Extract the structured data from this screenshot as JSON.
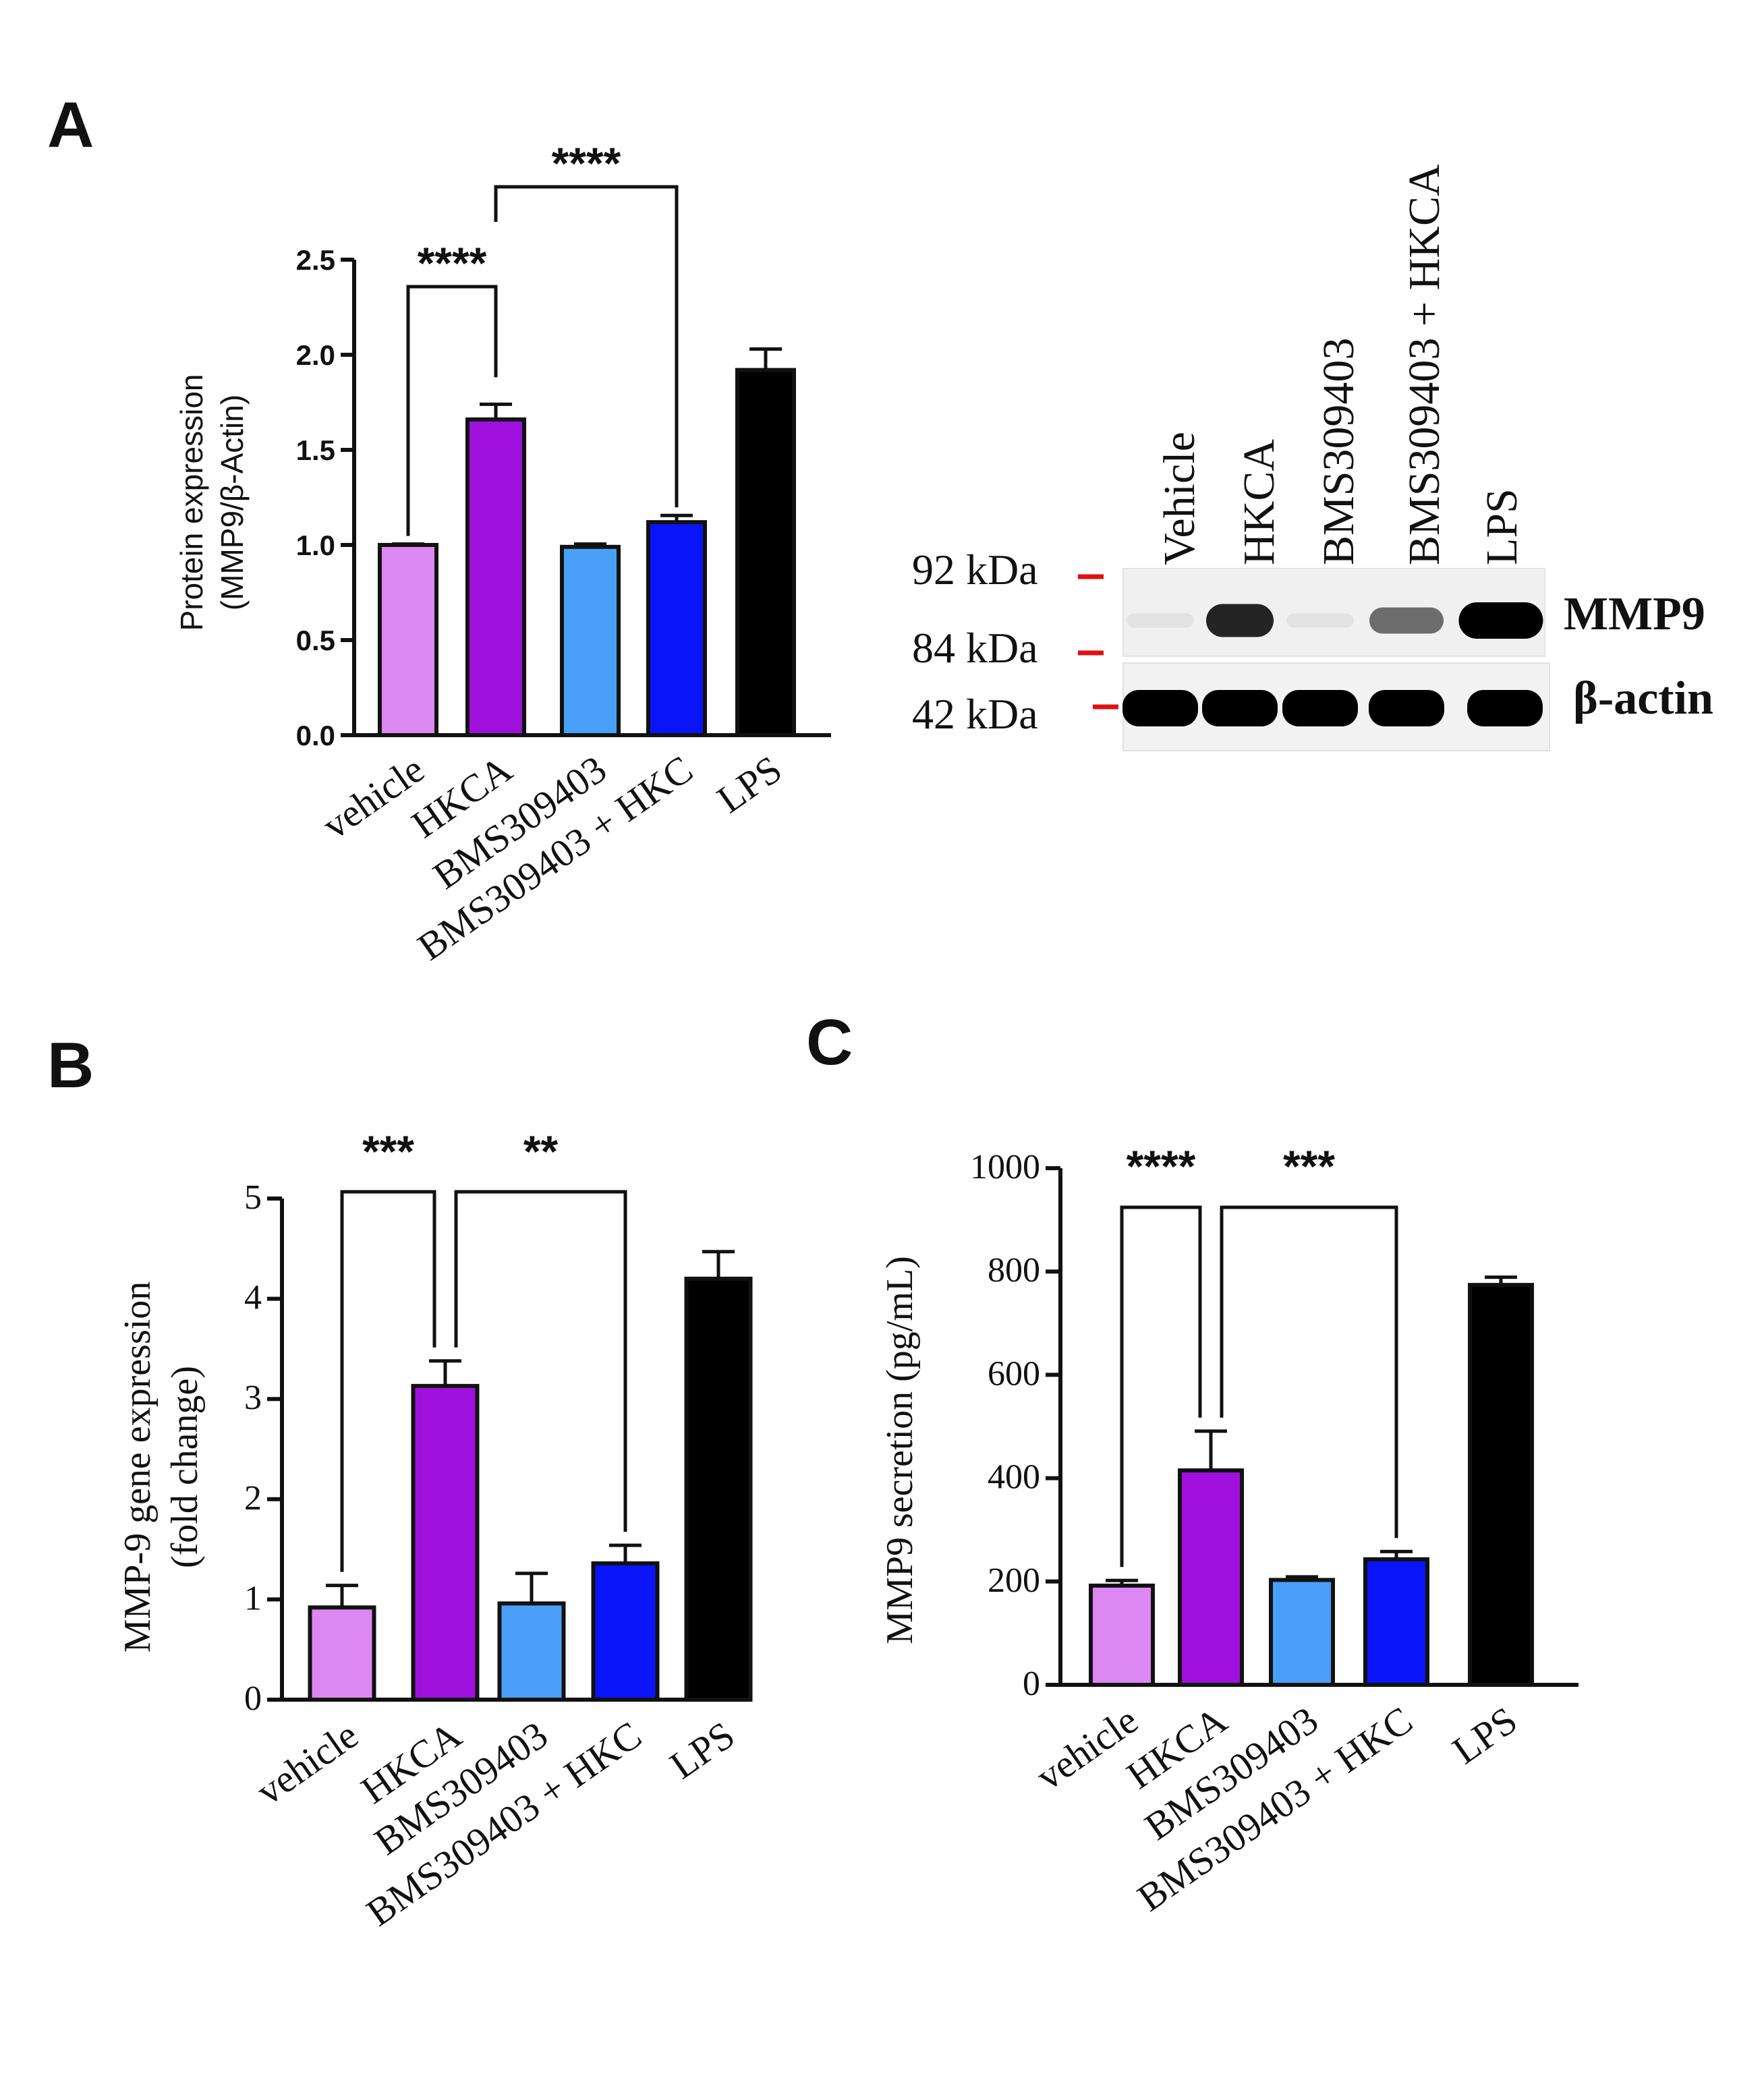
{
  "colors": {
    "vehicle": "#dd88f2",
    "HKCA": "#a010dc",
    "BMS309403": "#4aa0f8",
    "BMS309403 + HKC": "#0a14f8",
    "LPS": "#000000",
    "kda_marker": "#e01010"
  },
  "chart_data": [
    {
      "id": "A",
      "type": "bar",
      "panel_label": "A",
      "ylabel_lines": [
        "Protein expression",
        "(MMP9/β-Actin)"
      ],
      "categories": [
        "vehicle",
        "HKCA",
        "BMS309403",
        "BMS309403 + HKC",
        "LPS"
      ],
      "values": [
        1.0,
        1.66,
        0.99,
        1.12,
        1.92
      ],
      "errors": [
        0.005,
        0.08,
        0.015,
        0.035,
        0.11
      ],
      "ylim": [
        0,
        2.5
      ],
      "yticks": [
        "0.0",
        "0.5",
        "1.0",
        "1.5",
        "2.0",
        "2.5"
      ],
      "significance": [
        {
          "from": 0,
          "to": 1,
          "label": "****"
        },
        {
          "from": 1,
          "to": 3,
          "label": "****"
        }
      ]
    },
    {
      "id": "B",
      "type": "bar",
      "panel_label": "B",
      "ylabel_lines": [
        "MMP-9 gene expression",
        "(fold change)"
      ],
      "categories": [
        "vehicle",
        "HKCA",
        "BMS309403",
        "BMS309403 + HKC",
        "LPS"
      ],
      "values": [
        0.92,
        3.13,
        0.96,
        1.36,
        4.2
      ],
      "errors": [
        0.22,
        0.25,
        0.3,
        0.18,
        0.27
      ],
      "ylim": [
        0,
        5
      ],
      "yticks": [
        "0",
        "1",
        "2",
        "3",
        "4",
        "5"
      ],
      "significance": [
        {
          "from": 0,
          "to": 1,
          "label": "***"
        },
        {
          "from": 1,
          "to": 3,
          "label": "**"
        }
      ]
    },
    {
      "id": "C",
      "type": "bar",
      "panel_label": "C",
      "ylabel_lines": [
        "MMP9 secretion (pg/mL)"
      ],
      "categories": [
        "vehicle",
        "HKCA",
        "BMS309403",
        "BMS309403 + HKC",
        "LPS"
      ],
      "values": [
        192,
        415,
        203,
        243,
        774
      ],
      "errors": [
        10,
        76,
        6,
        15,
        15
      ],
      "ylim": [
        0,
        1000
      ],
      "yticks": [
        "0",
        "200",
        "400",
        "600",
        "800",
        "1000"
      ],
      "significance": [
        {
          "from": 0,
          "to": 1,
          "label": "****"
        },
        {
          "from": 1,
          "to": 3,
          "label": "***"
        }
      ]
    }
  ],
  "western_blot": {
    "lanes": [
      "Vehicle",
      "HKCA",
      "BMS309403",
      "BMS309403 + HKCA",
      "LPS"
    ],
    "markers": [
      "92 kDa",
      "84 kDa",
      "42 kDa"
    ],
    "proteins": [
      "MMP9",
      "β-actin"
    ],
    "mmp9_band_intensity": [
      0.04,
      0.85,
      0.03,
      0.55,
      1.0
    ],
    "actin_band_intensity": [
      1.0,
      1.0,
      1.0,
      1.0,
      1.0
    ]
  }
}
